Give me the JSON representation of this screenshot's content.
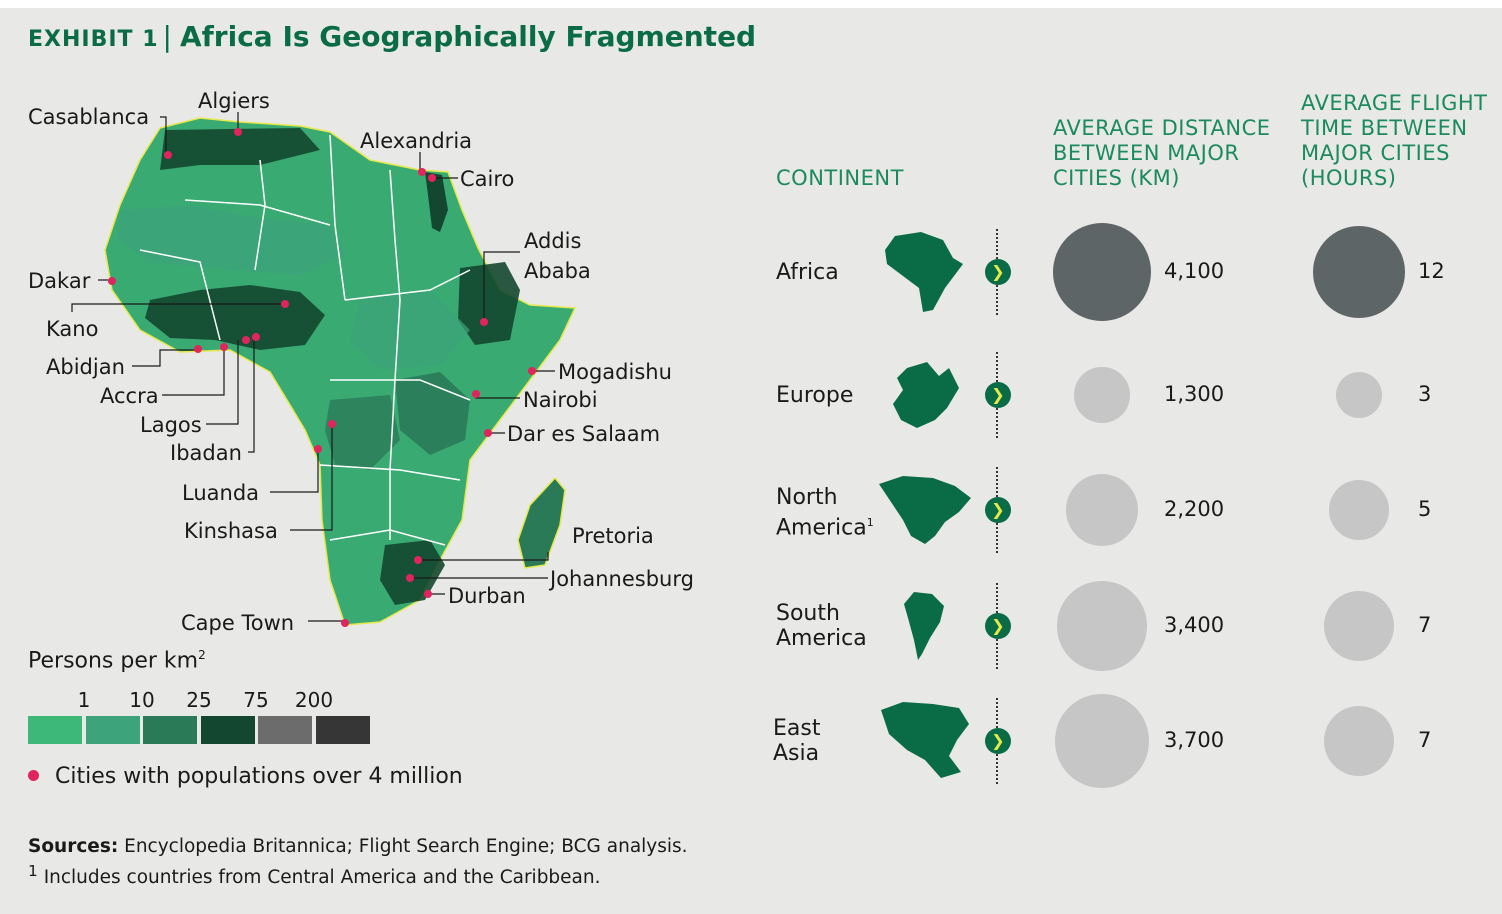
{
  "header": {
    "exhibit_label": "Exhibit 1",
    "title": "Africa Is Geographically Fragmented"
  },
  "map": {
    "cities": [
      {
        "name": "Casablanca"
      },
      {
        "name": "Algiers"
      },
      {
        "name": "Alexandria"
      },
      {
        "name": "Cairo"
      },
      {
        "name": "Dakar"
      },
      {
        "name": "Kano"
      },
      {
        "name": "Abidjan"
      },
      {
        "name": "Accra"
      },
      {
        "name": "Lagos"
      },
      {
        "name": "Ibadan"
      },
      {
        "name": "Addis"
      },
      {
        "name": "Ababa"
      },
      {
        "name": "Mogadishu"
      },
      {
        "name": "Nairobi"
      },
      {
        "name": "Dar es Salaam"
      },
      {
        "name": "Luanda"
      },
      {
        "name": "Kinshasa"
      },
      {
        "name": "Pretoria"
      },
      {
        "name": "Johannesburg"
      },
      {
        "name": "Durban"
      },
      {
        "name": "Cape Town"
      }
    ],
    "colors": {
      "city_dot": "#e0245e",
      "land": "#3aaa73",
      "border": "#ffffff",
      "outline": "#e6e84a"
    }
  },
  "legend": {
    "title": "Persons per km",
    "title_sup": "2",
    "ticks": [
      "1",
      "10",
      "25",
      "75",
      "200"
    ],
    "swatch_colors": [
      "#3eb878",
      "#3ca37b",
      "#2a7a58",
      "#14472f",
      "#6c6c6c",
      "#363636"
    ],
    "city_marker_label": "Cities with populations over 4 million"
  },
  "table": {
    "headers": {
      "continent": "CONTINENT",
      "distance": [
        "AVERAGE DISTANCE",
        "BETWEEN MAJOR",
        "CITIES (KM)"
      ],
      "flight": [
        "AVERAGE FLIGHT",
        "TIME BETWEEN",
        "MAJOR CITIES",
        "(HOURS)"
      ]
    },
    "rows": [
      {
        "name_lines": [
          "Africa"
        ],
        "sup": "",
        "distance": "4,100",
        "flight": "12",
        "highlight": true
      },
      {
        "name_lines": [
          "Europe"
        ],
        "sup": "",
        "distance": "1,300",
        "flight": "3",
        "highlight": false
      },
      {
        "name_lines": [
          "North",
          "America"
        ],
        "sup": "1",
        "distance": "2,200",
        "flight": "5",
        "highlight": false
      },
      {
        "name_lines": [
          "South",
          "America"
        ],
        "sup": "",
        "distance": "3,400",
        "flight": "7",
        "highlight": false
      },
      {
        "name_lines": [
          "East",
          "Asia"
        ],
        "sup": "",
        "distance": "3,700",
        "flight": "7",
        "highlight": false
      }
    ],
    "colors": {
      "highlight": "#5d6566",
      "other": "#c6c6c6",
      "continent_fill": "#0a6b47",
      "chevron_fill": "#0a6b47",
      "chevron_arrow": "#e6e84a"
    },
    "chevron_glyph": "❯"
  },
  "footer": {
    "sources_label": "Sources:",
    "sources_text": " Encyclopedia Britannica; Flight Search Engine; BCG analysis.",
    "footnote_sup": "1",
    "footnote_text": " Includes countries from Central America and the Caribbean."
  }
}
